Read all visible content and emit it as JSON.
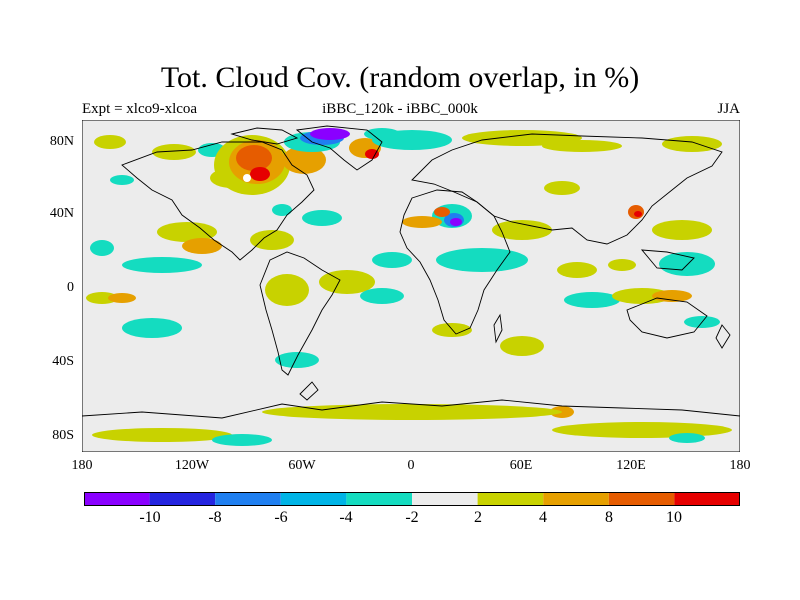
{
  "title": "Tot. Cloud Cov. (random overlap, in %)",
  "subtitle_left": "Expt = xlco9-xlcoa",
  "subtitle_center": "iBBC_120k - iBBC_000k",
  "subtitle_right": "JJA",
  "lat_labels": [
    "80N",
    "40N",
    "0",
    "40S",
    "80S"
  ],
  "lon_labels": [
    "180",
    "120W",
    "60W",
    "0",
    "60E",
    "120E",
    "180"
  ],
  "colorbar": {
    "colors": [
      "#8a00ff",
      "#2525e0",
      "#1f7ff0",
      "#00b4e6",
      "#14dcc0",
      "#ececec",
      "#c8d200",
      "#e6a000",
      "#e65c00",
      "#e60000"
    ],
    "labels": [
      "-10",
      "-8",
      "-6",
      "-4",
      "-2",
      "2",
      "4",
      "8",
      "10"
    ]
  },
  "colors": {
    "ocean_land_bg": "#ececec",
    "coast": "#000000"
  }
}
